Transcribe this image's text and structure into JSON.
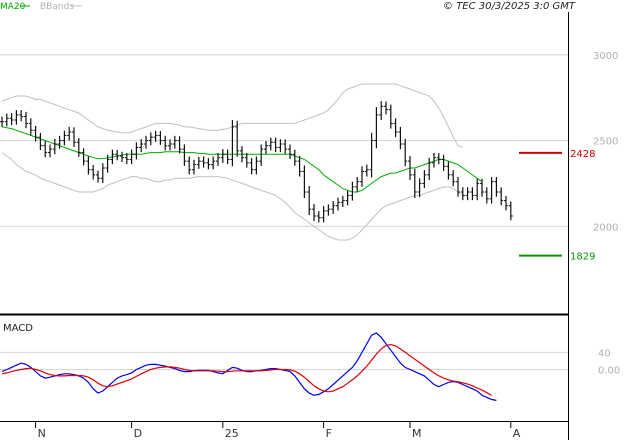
{
  "header": {
    "ma_label": "MA20",
    "bb_label": "BBands",
    "copyright": "© TEC 30/3/2025 3:0 GMT"
  },
  "colors": {
    "price": "#111111",
    "ma": "#00aa00",
    "bbands": "#c0c0c0",
    "macd": "#0000ee",
    "signal": "#dd0000",
    "resistance": "#cc0000",
    "support": "#009900",
    "grid": "#d4d4d4"
  },
  "chart_data": [
    {
      "type": "bar",
      "title": "",
      "ylim": [
        1500,
        3250
      ],
      "y_ticks": [
        {
          "value": 3000,
          "label": "3000"
        },
        {
          "value": 2500,
          "label": "2500"
        },
        {
          "value": 2000,
          "label": "2000"
        }
      ],
      "time_labels": [
        {
          "index": 7,
          "label": "N"
        },
        {
          "index": 27,
          "label": "D"
        },
        {
          "index": 46,
          "label": "25"
        },
        {
          "index": 67,
          "label": "F"
        },
        {
          "index": 85,
          "label": "M"
        },
        {
          "index": 106,
          "label": "A"
        }
      ],
      "levels": [
        {
          "name": "resistance",
          "value": 2428,
          "label": "2428"
        },
        {
          "name": "support",
          "value": 1829,
          "label": "1829"
        }
      ],
      "close": [
        2610,
        2630,
        2620,
        2650,
        2640,
        2600,
        2560,
        2520,
        2470,
        2430,
        2450,
        2480,
        2500,
        2530,
        2550,
        2490,
        2430,
        2380,
        2330,
        2300,
        2280,
        2340,
        2390,
        2420,
        2410,
        2400,
        2390,
        2420,
        2460,
        2480,
        2500,
        2520,
        2530,
        2500,
        2470,
        2480,
        2500,
        2450,
        2380,
        2330,
        2360,
        2380,
        2370,
        2360,
        2380,
        2400,
        2420,
        2390,
        2580,
        2440,
        2400,
        2370,
        2330,
        2380,
        2450,
        2470,
        2490,
        2460,
        2480,
        2450,
        2420,
        2380,
        2320,
        2200,
        2100,
        2060,
        2050,
        2090,
        2100,
        2120,
        2140,
        2150,
        2180,
        2230,
        2260,
        2320,
        2330,
        2500,
        2650,
        2700,
        2680,
        2600,
        2550,
        2480,
        2380,
        2300,
        2200,
        2250,
        2300,
        2370,
        2400,
        2390,
        2350,
        2300,
        2260,
        2200,
        2180,
        2200,
        2180,
        2250,
        2200,
        2160,
        2260,
        2200,
        2150,
        2120,
        2060
      ],
      "high_offset": [
        60,
        55,
        60,
        55,
        55,
        55,
        60,
        50,
        50,
        55,
        55,
        60,
        55,
        55,
        60,
        55,
        50,
        50,
        55,
        55,
        50,
        55,
        55,
        55,
        50,
        50,
        55,
        55,
        60,
        55,
        55,
        55,
        55,
        50,
        55,
        55,
        55,
        50,
        55,
        55,
        55,
        50,
        55,
        55,
        55,
        55,
        60,
        55,
        80,
        70,
        55,
        55,
        55,
        55,
        55,
        55,
        55,
        55,
        55,
        55,
        55,
        55,
        60,
        70,
        70,
        60,
        55,
        55,
        55,
        55,
        55,
        55,
        55,
        60,
        55,
        60,
        60,
        90,
        90,
        60,
        55,
        60,
        60,
        60,
        60,
        60,
        70,
        60,
        55,
        60,
        55,
        55,
        55,
        55,
        55,
        55,
        55,
        55,
        55,
        55,
        55,
        55,
        55,
        55,
        55,
        55,
        50
      ],
      "low_offset": [
        60,
        55,
        60,
        55,
        55,
        55,
        60,
        50,
        50,
        55,
        55,
        60,
        55,
        55,
        60,
        55,
        50,
        50,
        55,
        55,
        50,
        55,
        55,
        55,
        50,
        50,
        55,
        55,
        60,
        55,
        55,
        55,
        55,
        50,
        55,
        55,
        55,
        50,
        55,
        55,
        55,
        50,
        55,
        55,
        55,
        55,
        60,
        55,
        80,
        70,
        55,
        55,
        55,
        55,
        55,
        55,
        55,
        55,
        55,
        55,
        55,
        55,
        60,
        70,
        70,
        60,
        55,
        55,
        55,
        55,
        55,
        55,
        55,
        60,
        55,
        60,
        60,
        90,
        90,
        60,
        55,
        60,
        60,
        60,
        60,
        60,
        70,
        60,
        55,
        60,
        55,
        55,
        55,
        55,
        55,
        55,
        55,
        55,
        55,
        55,
        55,
        55,
        55,
        55,
        55,
        55,
        50
      ],
      "ma20": [
        2580,
        2575,
        2570,
        2560,
        2550,
        2540,
        2530,
        2520,
        2510,
        2500,
        2490,
        2480,
        2470,
        2460,
        2450,
        2440,
        2430,
        2420,
        2410,
        2400,
        2395,
        2395,
        2400,
        2405,
        2410,
        2415,
        2420,
        2420,
        2420,
        2420,
        2425,
        2430,
        2430,
        2430,
        2435,
        2435,
        2435,
        2435,
        2430,
        2430,
        2430,
        2425,
        2425,
        2420,
        2420,
        2420,
        2420,
        2420,
        2420,
        2420,
        2420,
        2420,
        2420,
        2420,
        2420,
        2420,
        2420,
        2420,
        2420,
        2420,
        2420,
        2410,
        2400,
        2390,
        2370,
        2350,
        2330,
        2300,
        2280,
        2260,
        2240,
        2220,
        2210,
        2200,
        2200,
        2210,
        2230,
        2250,
        2270,
        2290,
        2300,
        2310,
        2310,
        2320,
        2330,
        2340,
        2340,
        2350,
        2360,
        2370,
        2380,
        2390,
        2390,
        2380,
        2370,
        2360,
        2340,
        2320,
        2300,
        2280,
        2260
      ],
      "bb_upper": [
        2730,
        2740,
        2750,
        2760,
        2760,
        2760,
        2750,
        2740,
        2740,
        2730,
        2720,
        2710,
        2700,
        2690,
        2680,
        2670,
        2660,
        2640,
        2620,
        2600,
        2580,
        2570,
        2560,
        2555,
        2550,
        2545,
        2545,
        2550,
        2560,
        2570,
        2580,
        2590,
        2600,
        2600,
        2600,
        2600,
        2595,
        2590,
        2580,
        2580,
        2575,
        2570,
        2565,
        2560,
        2560,
        2560,
        2565,
        2570,
        2580,
        2590,
        2600,
        2600,
        2600,
        2600,
        2600,
        2600,
        2600,
        2600,
        2600,
        2600,
        2600,
        2600,
        2610,
        2620,
        2630,
        2640,
        2650,
        2660,
        2680,
        2710,
        2740,
        2780,
        2800,
        2810,
        2820,
        2830,
        2830,
        2830,
        2830,
        2830,
        2830,
        2830,
        2830,
        2820,
        2810,
        2800,
        2790,
        2780,
        2770,
        2760,
        2730,
        2690,
        2640,
        2580,
        2520,
        2470,
        2460
      ],
      "bb_lower": [
        2430,
        2410,
        2390,
        2360,
        2340,
        2320,
        2310,
        2300,
        2280,
        2270,
        2260,
        2250,
        2240,
        2230,
        2220,
        2210,
        2200,
        2200,
        2200,
        2200,
        2210,
        2220,
        2240,
        2250,
        2260,
        2270,
        2280,
        2290,
        2290,
        2280,
        2280,
        2270,
        2260,
        2260,
        2270,
        2270,
        2280,
        2280,
        2280,
        2280,
        2285,
        2290,
        2290,
        2290,
        2290,
        2290,
        2285,
        2280,
        2270,
        2260,
        2250,
        2240,
        2230,
        2220,
        2210,
        2200,
        2190,
        2180,
        2160,
        2140,
        2110,
        2080,
        2060,
        2040,
        2020,
        2000,
        1980,
        1960,
        1940,
        1930,
        1920,
        1920,
        1920,
        1930,
        1950,
        1980,
        2010,
        2040,
        2070,
        2100,
        2120,
        2130,
        2140,
        2150,
        2160,
        2170,
        2180,
        2180,
        2190,
        2200,
        2210,
        2220,
        2230,
        2230,
        2220,
        2200,
        2180
      ],
      "bb_start_index": 0,
      "ma_start_index": 0
    },
    {
      "type": "line",
      "title": "MACD",
      "ylim": [
        -120,
        120
      ],
      "y_ticks": [
        {
          "value": 40,
          "label": "40"
        },
        {
          "value": 0,
          "label": "0.00"
        }
      ],
      "series": [
        {
          "name": "macd",
          "values": [
            -5,
            0,
            5,
            10,
            15,
            12,
            5,
            -5,
            -15,
            -20,
            -18,
            -15,
            -12,
            -10,
            -10,
            -12,
            -15,
            -20,
            -30,
            -45,
            -55,
            -50,
            -40,
            -30,
            -20,
            -15,
            -12,
            -8,
            0,
            5,
            10,
            12,
            12,
            10,
            8,
            5,
            2,
            -2,
            -5,
            -5,
            -3,
            -2,
            -2,
            -2,
            -5,
            -8,
            -10,
            -2,
            5,
            3,
            -2,
            -5,
            -5,
            -3,
            -2,
            0,
            2,
            2,
            0,
            -2,
            -5,
            -15,
            -30,
            -45,
            -55,
            -60,
            -58,
            -52,
            -45,
            -35,
            -25,
            -15,
            -5,
            5,
            20,
            40,
            60,
            80,
            85,
            75,
            60,
            45,
            30,
            15,
            5,
            0,
            -5,
            -10,
            -15,
            -25,
            -35,
            -40,
            -35,
            -30,
            -28,
            -30,
            -35,
            -40,
            -45,
            -50,
            -60,
            -65,
            -70,
            -72
          ]
        },
        {
          "name": "signal",
          "values": [
            -10,
            -8,
            -5,
            -2,
            0,
            2,
            3,
            0,
            -3,
            -8,
            -12,
            -14,
            -15,
            -15,
            -14,
            -14,
            -14,
            -15,
            -18,
            -24,
            -32,
            -38,
            -40,
            -38,
            -34,
            -30,
            -26,
            -22,
            -16,
            -10,
            -5,
            0,
            3,
            5,
            6,
            6,
            5,
            3,
            0,
            -2,
            -3,
            -3,
            -3,
            -3,
            -3,
            -4,
            -5,
            -5,
            -4,
            -3,
            -3,
            -3,
            -3,
            -3,
            -3,
            -2,
            -1,
            0,
            0,
            0,
            -1,
            -4,
            -10,
            -18,
            -28,
            -38,
            -45,
            -50,
            -52,
            -50,
            -45,
            -40,
            -32,
            -24,
            -15,
            -4,
            8,
            22,
            36,
            48,
            56,
            58,
            55,
            48,
            40,
            32,
            24,
            16,
            8,
            0,
            -8,
            -15,
            -20,
            -24,
            -27,
            -29,
            -31,
            -34,
            -38,
            -43,
            -48,
            -54,
            -60
          ]
        }
      ]
    }
  ]
}
